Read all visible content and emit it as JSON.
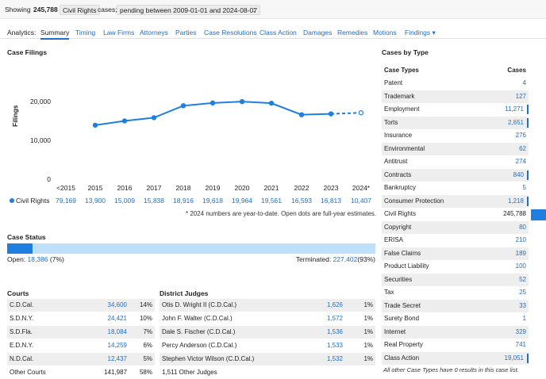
{
  "topbar": {
    "showing_prefix": "Showing",
    "count": "245,788",
    "case_type_chip": "Civil Rights",
    "cases_label": "cases;",
    "pending_chip": "pending between 2009-01-01 and 2024-08-07",
    "trailing": ";"
  },
  "nav": {
    "label": "Analytics:",
    "tabs": [
      "Summary",
      "Timing",
      "Law Firms",
      "Attorneys",
      "Parties",
      "Case Resolutions",
      "Class Action",
      "Damages",
      "Remedies",
      "Motions",
      "Findings"
    ],
    "dropdown_arrow": "▾"
  },
  "filings": {
    "title": "Case Filings",
    "ylabel": "Filings",
    "yticks": [
      "20,000",
      "10,000",
      "0"
    ],
    "legend": "Civil Rights",
    "footnote": "* 2024 numbers are year-to-date. Open dots are full-year estimates."
  },
  "chart_data": {
    "type": "line",
    "title": "Case Filings",
    "ylabel": "Filings",
    "ylim": [
      0,
      24000
    ],
    "categories": [
      "<2015",
      "2015",
      "2016",
      "2017",
      "2018",
      "2019",
      "2020",
      "2021",
      "2022",
      "2023",
      "2024*"
    ],
    "value_labels": [
      "79,169",
      "13,900",
      "15,009",
      "15,838",
      "18,916",
      "19,618",
      "19,964",
      "19,561",
      "16,593",
      "16,813",
      "10,407"
    ],
    "series": [
      {
        "name": "Civil Rights",
        "x": [
          "2015",
          "2016",
          "2017",
          "2018",
          "2019",
          "2020",
          "2021",
          "2022",
          "2023",
          "2024*"
        ],
        "values": [
          13900,
          15009,
          15838,
          18916,
          19618,
          19964,
          19561,
          16593,
          16813,
          17100
        ],
        "estimated_last_point": true
      }
    ],
    "grid": false
  },
  "status": {
    "title": "Case Status",
    "open_label": "Open:",
    "open_value": "18,386",
    "open_pct": "(7%)",
    "terminated_label": "Terminated:",
    "terminated_value": "227,402",
    "terminated_pct": "(93%)",
    "open_fraction": 0.07
  },
  "courts": {
    "title": "Courts",
    "rows": [
      {
        "name": "C.D.Cal.",
        "value": "34,600",
        "pct": "14%"
      },
      {
        "name": "S.D.N.Y.",
        "value": "24,421",
        "pct": "10%"
      },
      {
        "name": "S.D.Fla.",
        "value": "18,084",
        "pct": "7%"
      },
      {
        "name": "E.D.N.Y.",
        "value": "14,259",
        "pct": "6%"
      },
      {
        "name": "N.D.Cal.",
        "value": "12,437",
        "pct": "5%"
      },
      {
        "name": "Other Courts",
        "value": "141,987",
        "pct": "58%"
      }
    ]
  },
  "judges": {
    "title": "District Judges",
    "rows": [
      {
        "name": "Otis D. Wright II (C.D.Cal.)",
        "value": "1,626",
        "pct": "1%"
      },
      {
        "name": "John F. Walter (C.D.Cal.)",
        "value": "1,572",
        "pct": "1%"
      },
      {
        "name": "Dale S. Fischer (C.D.Cal.)",
        "value": "1,536",
        "pct": "1%"
      },
      {
        "name": "Percy Anderson (C.D.Cal.)",
        "value": "1,533",
        "pct": "1%"
      },
      {
        "name": "Stephen Victor Wilson (C.D.Cal.)",
        "value": "1,532",
        "pct": "1%"
      },
      {
        "name": "1,511 Other Judges",
        "value": "",
        "pct": ""
      }
    ]
  },
  "case_types": {
    "title": "Cases by Type",
    "col_type": "Case Types",
    "col_cases": "Cases",
    "rows": [
      {
        "name": "Patent",
        "value": "4"
      },
      {
        "name": "Trademark",
        "value": "127"
      },
      {
        "name": "Employment",
        "value": "11,271"
      },
      {
        "name": "Torts",
        "value": "2,651"
      },
      {
        "name": "Insurance",
        "value": "276"
      },
      {
        "name": "Environmental",
        "value": "62"
      },
      {
        "name": "Antitrust",
        "value": "274"
      },
      {
        "name": "Contracts",
        "value": "840"
      },
      {
        "name": "Bankruptcy",
        "value": "5"
      },
      {
        "name": "Consumer Protection",
        "value": "1,218"
      },
      {
        "name": "Civil Rights",
        "value": "245,788"
      },
      {
        "name": "Copyright",
        "value": "80"
      },
      {
        "name": "ERISA",
        "value": "210"
      },
      {
        "name": "False Claims",
        "value": "189"
      },
      {
        "name": "Product Liability",
        "value": "100"
      },
      {
        "name": "Securities",
        "value": "52"
      },
      {
        "name": "Tax",
        "value": "25"
      },
      {
        "name": "Trade Secret",
        "value": "33"
      },
      {
        "name": "Surety Bond",
        "value": "1"
      },
      {
        "name": "Internet",
        "value": "329"
      },
      {
        "name": "Real Property",
        "value": "741"
      },
      {
        "name": "Class Action",
        "value": "19,051"
      }
    ],
    "footnote": "All other Case Types have 0 results in this case list."
  },
  "colors": {
    "accent": "#1f6ec7",
    "status_open": "#1f7fe0",
    "status_terminated": "#bfe0fb"
  }
}
